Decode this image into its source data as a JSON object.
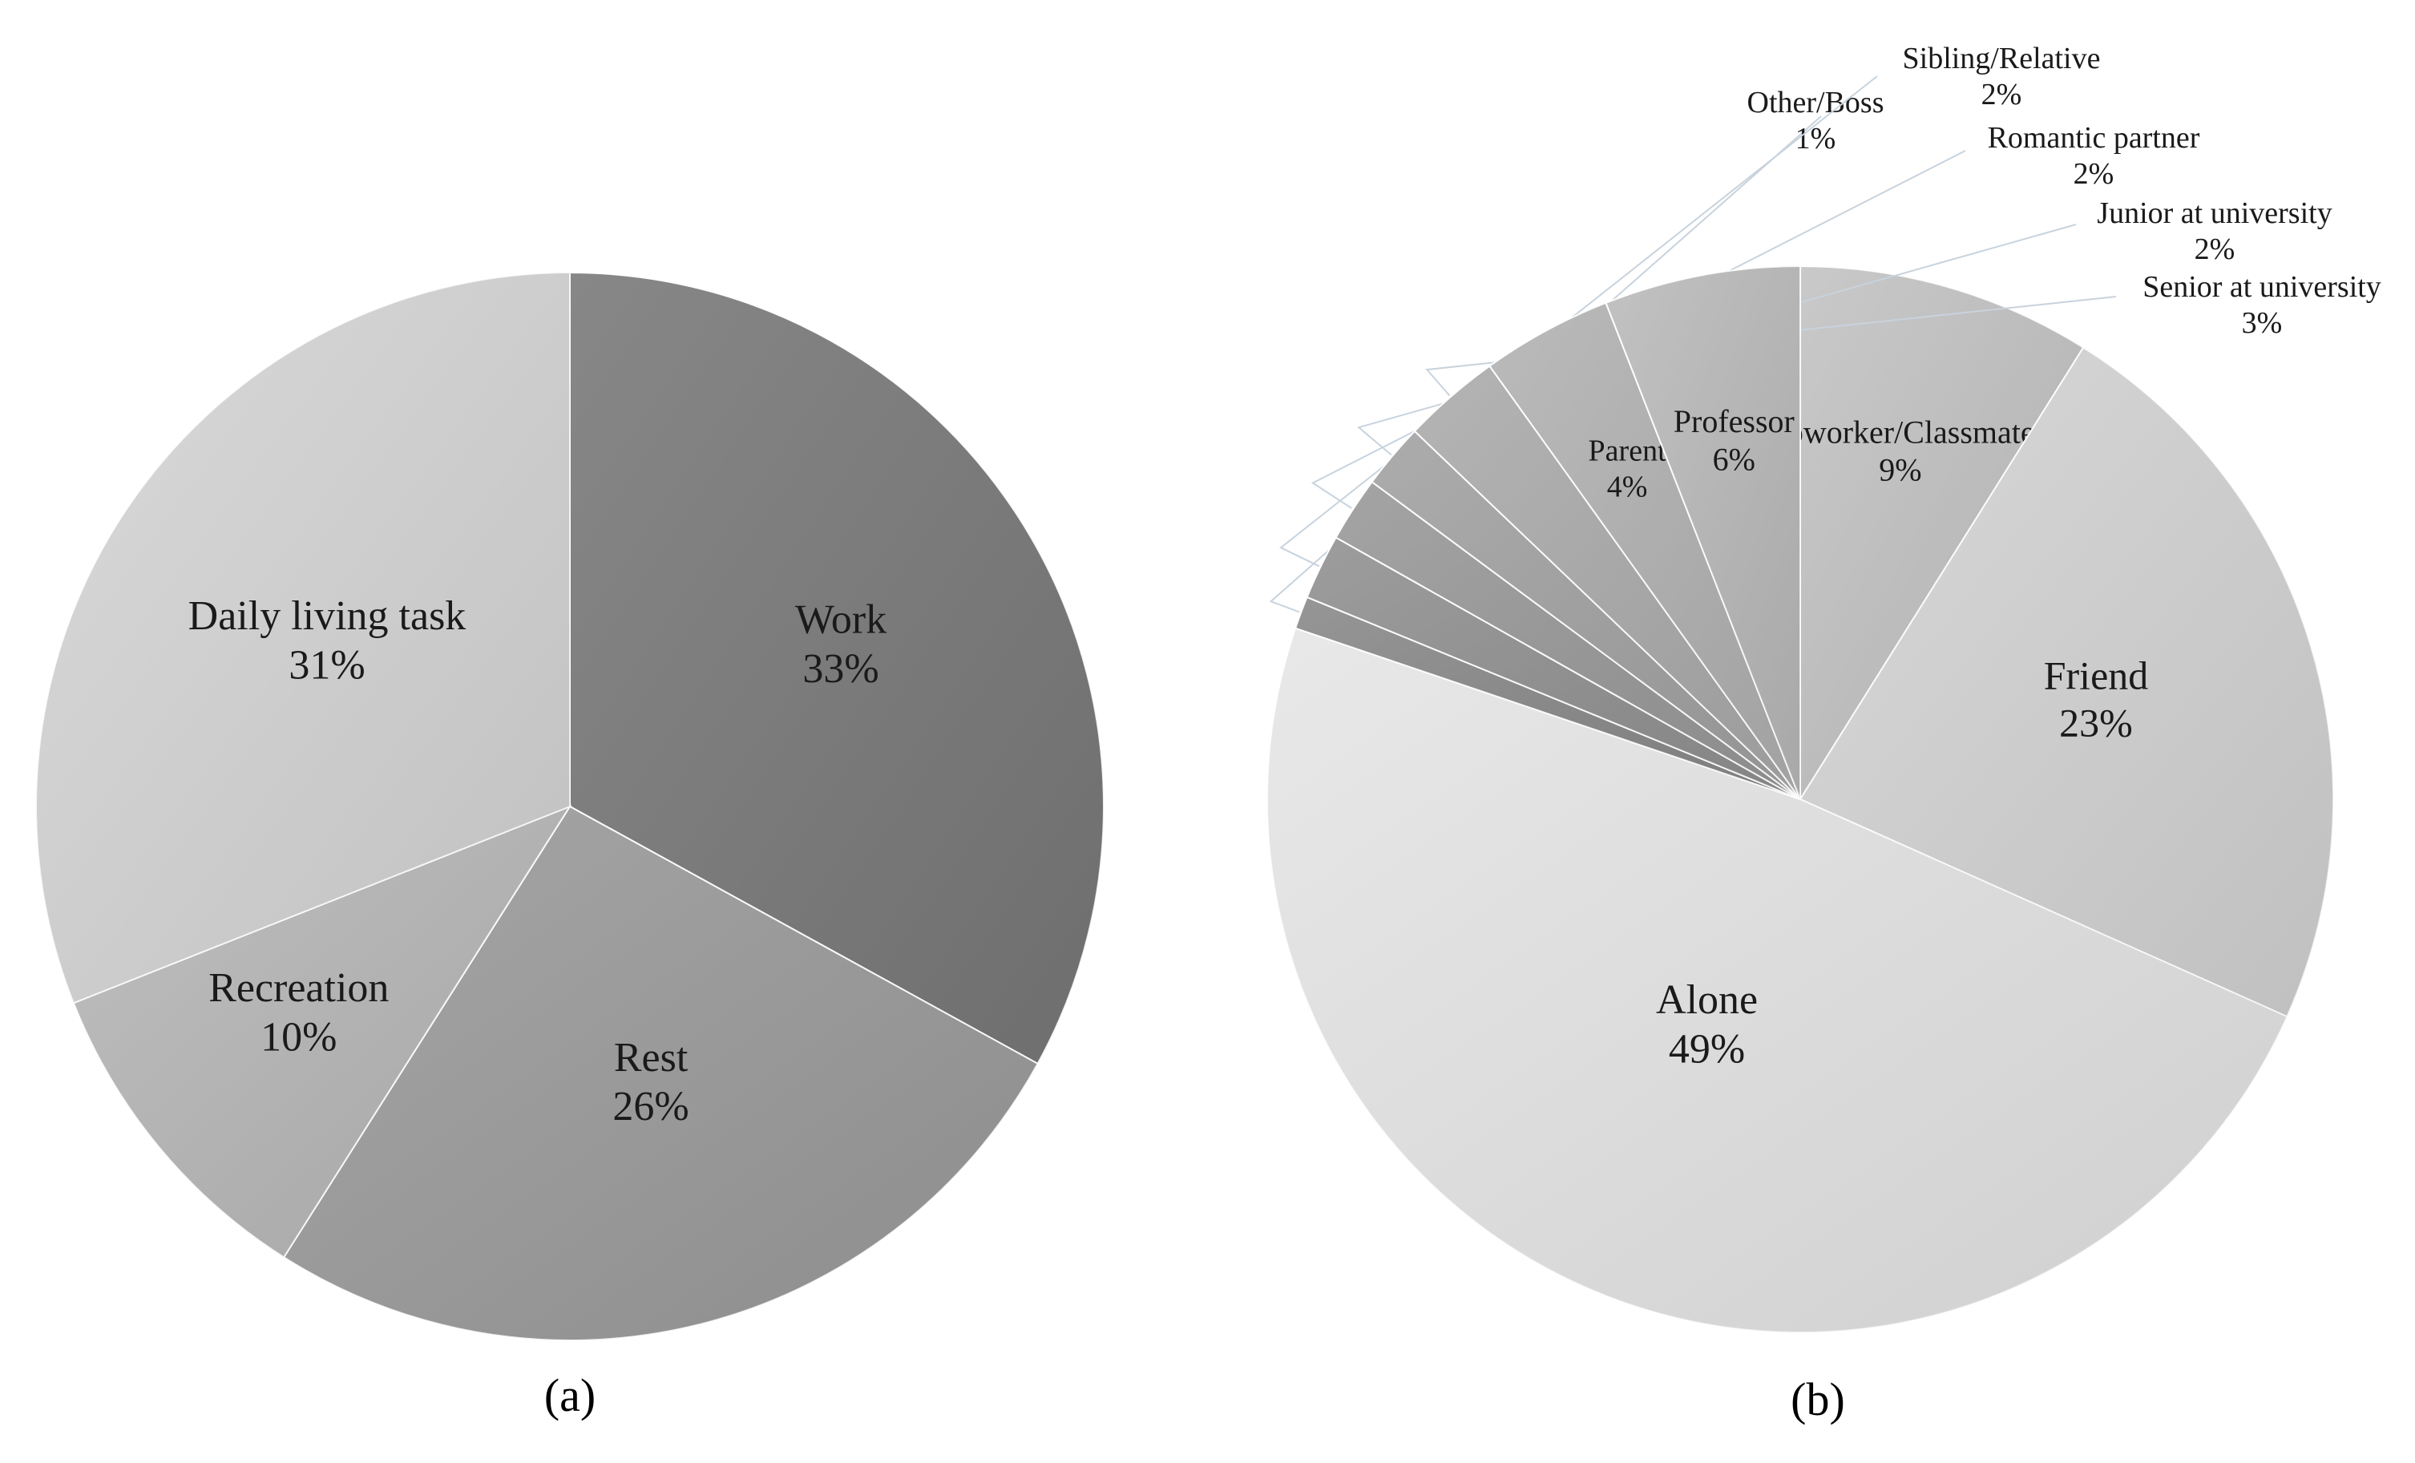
{
  "chart_data": [
    {
      "type": "pie",
      "caption": "(a)",
      "slices": [
        {
          "label": "Work",
          "value": 33,
          "value_label": "33%",
          "color": "#7a7a7a"
        },
        {
          "label": "Rest",
          "value": 26,
          "value_label": "26%",
          "color": "#9c9c9c"
        },
        {
          "label": "Recreation",
          "value": 10,
          "value_label": "10%",
          "color": "#b8b8b8"
        },
        {
          "label": "Daily living task",
          "value": 31,
          "value_label": "31%",
          "color": "#d6d6d6"
        }
      ]
    },
    {
      "type": "pie",
      "caption": "(b)",
      "slices": [
        {
          "label": "Coworker/Classmate",
          "value": 9,
          "value_label": "9%",
          "color": "#c3c3c3"
        },
        {
          "label": "Friend",
          "value": 23,
          "value_label": "23%",
          "color": "#d5d5d5"
        },
        {
          "label": "Alone",
          "value": 49,
          "value_label": "49%",
          "color": "#e6e6e6"
        },
        {
          "label": "Other/Boss",
          "value": 1,
          "value_label": "1%",
          "color": "#8a8a8a"
        },
        {
          "label": "Sibling/Relative",
          "value": 2,
          "value_label": "2%",
          "color": "#929292"
        },
        {
          "label": "Romantic partner",
          "value": 2,
          "value_label": "2%",
          "color": "#9a9a9a"
        },
        {
          "label": "Junior at university",
          "value": 2,
          "value_label": "2%",
          "color": "#a3a3a3"
        },
        {
          "label": "Senior at university",
          "value": 3,
          "value_label": "3%",
          "color": "#acacac"
        },
        {
          "label": "Parent",
          "value": 4,
          "value_label": "4%",
          "color": "#b3b3b3"
        },
        {
          "label": "Professor",
          "value": 6,
          "value_label": "6%",
          "color": "#bbbbbb"
        }
      ]
    }
  ]
}
